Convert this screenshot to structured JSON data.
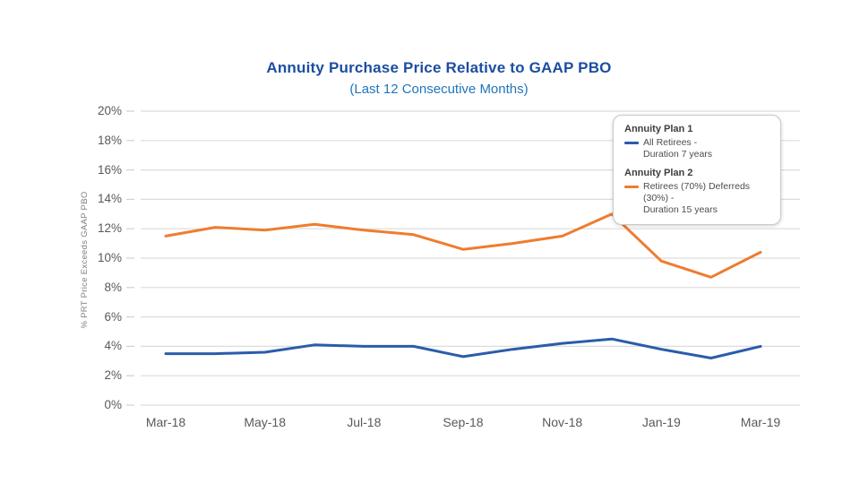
{
  "title": {
    "text": "Annuity Purchase Price Relative to GAAP PBO",
    "subtitle": "(Last 12 Consecutive Months)"
  },
  "colors": {
    "title": "#1c4da0",
    "subtitle": "#2176bc",
    "gridline": "#dcdcdc",
    "tick_mark": "#d0d0d0",
    "tick_text": "#595959",
    "axis_title_text": "#7f7f7f",
    "plan1_blue": "#2a5caa",
    "plan2_orange": "#ed7d31"
  },
  "y_axis": {
    "label": "% PRT Price Exceeds GAAP PBO",
    "ticks": [
      "20%",
      "18%",
      "16%",
      "14%",
      "12%",
      "10%",
      "8%",
      "6%",
      "4%",
      "2%",
      "0%"
    ]
  },
  "x_axis": {
    "tick_labels": [
      "Mar-18",
      "May-18",
      "Jul-18",
      "Sep-18",
      "Nov-18",
      "Jan-19",
      "Mar-19"
    ]
  },
  "legend": {
    "entries": [
      {
        "header": "Annuity Plan 1",
        "line1": "All Retirees -",
        "line2": "Duration 7 years",
        "color": "#2a5caa"
      },
      {
        "header": "Annuity Plan 2",
        "line1": "Retirees (70%) Deferreds (30%) -",
        "line2": "Duration 15 years",
        "color": "#ed7d31"
      }
    ]
  },
  "chart_data": {
    "type": "line",
    "title": "Annuity Purchase Price Relative to GAAP PBO",
    "subtitle": "(Last 12 Consecutive Months)",
    "ylabel": "% PRT Price Exceeds GAAP PBO",
    "ylim": [
      0,
      20
    ],
    "ytick_step": 2,
    "grid": true,
    "legend_position": "top-right",
    "x": [
      "Mar-18",
      "Apr-18",
      "May-18",
      "Jun-18",
      "Jul-18",
      "Aug-18",
      "Sep-18",
      "Oct-18",
      "Nov-18",
      "Dec-18",
      "Jan-19",
      "Feb-19",
      "Mar-19"
    ],
    "x_labeled_every": 2,
    "series": [
      {
        "name": "Annuity Plan 1",
        "label": "All Retirees - Duration 7 years",
        "color": "#2a5caa",
        "values": [
          3.5,
          3.5,
          3.6,
          4.1,
          4.0,
          4.0,
          3.3,
          3.8,
          4.2,
          4.5,
          3.8,
          3.2,
          4.0
        ]
      },
      {
        "name": "Annuity Plan 2",
        "label": "Retirees (70%) Deferreds (30%) - Duration 15 years",
        "color": "#ed7d31",
        "values": [
          11.5,
          12.1,
          11.9,
          12.3,
          11.9,
          11.6,
          10.6,
          11.0,
          11.5,
          13.0,
          9.8,
          8.7,
          10.4
        ]
      }
    ]
  }
}
